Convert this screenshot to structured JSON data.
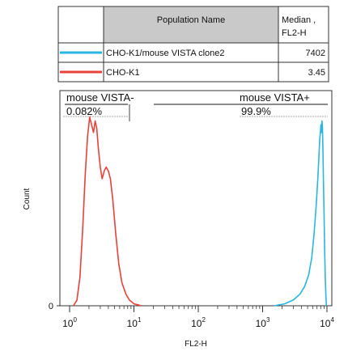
{
  "legend_table": {
    "header_name": "Population Name",
    "header_median_line1": "Median ,",
    "header_median_line2": "FL2-H",
    "rows": [
      {
        "name": "CHO-K1/mouse VISTA clone2",
        "median": "7402",
        "color": "#29b6e0"
      },
      {
        "name": "CHO-K1",
        "median": "3.45",
        "color": "#e8413a"
      }
    ]
  },
  "chart_data": {
    "type": "line",
    "xlabel": "FL2-H",
    "ylabel": "Count",
    "x_scale": "log",
    "xlim": [
      0.5,
      10000
    ],
    "ylim": [
      0,
      100
    ],
    "x_ticks": [
      {
        "value": 1,
        "base": "10",
        "exp": "0"
      },
      {
        "value": 10,
        "base": "10",
        "exp": "1"
      },
      {
        "value": 100,
        "base": "10",
        "exp": "2"
      },
      {
        "value": 1000,
        "base": "10",
        "exp": "3"
      },
      {
        "value": 10000,
        "base": "10",
        "exp": "4"
      }
    ],
    "y_ticks": [
      "0"
    ],
    "gates": [
      {
        "name": "mouse VISTA-",
        "percent": "0.082%",
        "range": [
          0.5,
          10
        ]
      },
      {
        "name": "mouse VISTA+",
        "percent": "99.9%",
        "range": [
          10,
          10000
        ]
      }
    ],
    "series": [
      {
        "name": "CHO-K1/mouse VISTA clone2",
        "color": "#29b6e0",
        "x": [
          1500,
          2200,
          3000,
          3800,
          4500,
          5200,
          5800,
          6300,
          6800,
          7200,
          7500,
          7700,
          7900,
          8050,
          8200,
          8350,
          8500,
          8650,
          8800,
          9000,
          9200,
          9400,
          9600,
          9800
        ],
        "y": [
          0,
          1,
          3,
          6,
          10,
          16,
          25,
          37,
          52,
          66,
          78,
          86,
          90,
          94,
          90,
          96,
          93,
          82,
          66,
          48,
          30,
          15,
          6,
          0
        ]
      },
      {
        "name": "CHO-K1",
        "color": "#e8413a",
        "x": [
          1.15,
          1.3,
          1.45,
          1.6,
          1.75,
          1.9,
          2.05,
          2.2,
          2.35,
          2.5,
          2.65,
          2.8,
          3.0,
          3.2,
          3.45,
          3.7,
          4.0,
          4.3,
          4.7,
          5.2,
          5.8,
          6.5,
          7.5,
          8.5,
          10,
          11.5,
          13
        ],
        "y": [
          0,
          3,
          15,
          40,
          68,
          88,
          98,
          94,
          90,
          96,
          92,
          82,
          72,
          66,
          70,
          72,
          70,
          66,
          55,
          38,
          22,
          12,
          6,
          3,
          1,
          0.5,
          0
        ]
      }
    ]
  }
}
